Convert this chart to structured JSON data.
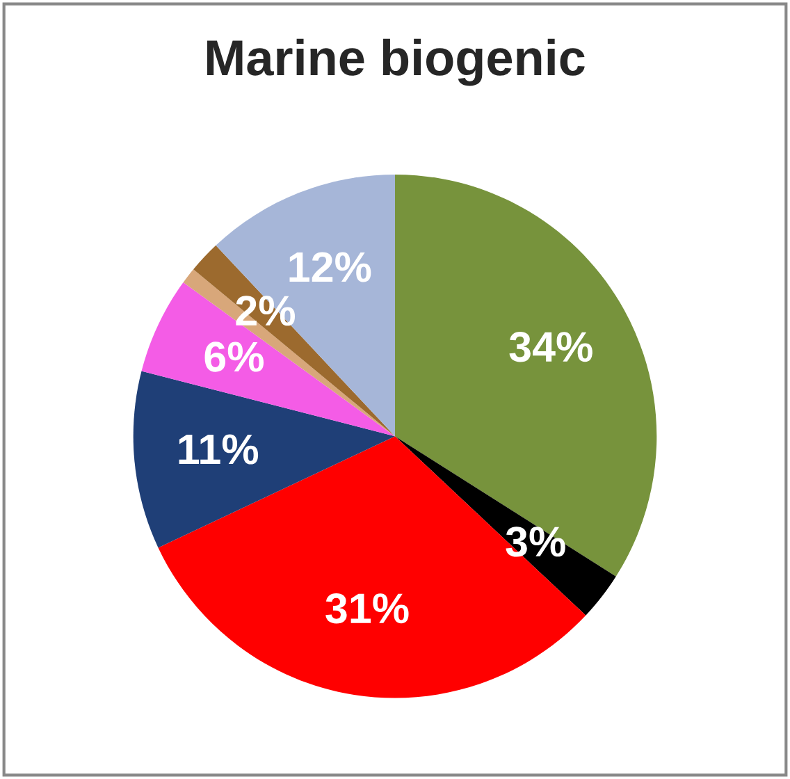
{
  "chart_data": {
    "type": "pie",
    "title": "Marine biogenic",
    "categories": [
      null,
      null,
      null,
      null,
      null,
      null,
      null,
      null
    ],
    "values": [
      34,
      3,
      31,
      11,
      6,
      1,
      2,
      12
    ],
    "value_labels": [
      "34%",
      "3%",
      "31%",
      "11%",
      "6%",
      null,
      "2%",
      "12%"
    ],
    "colors": [
      "#77933c",
      "#000000",
      "#ff0000",
      "#1f3f77",
      "#f45ce6",
      "#d8a77a",
      "#9c6a2e",
      "#a6b6d8"
    ]
  }
}
